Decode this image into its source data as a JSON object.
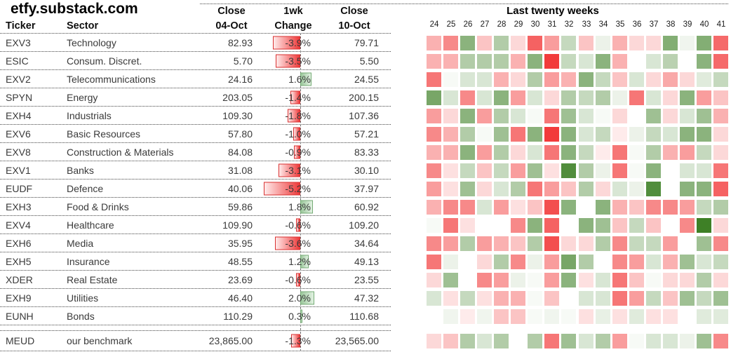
{
  "site_label": "etfy.substack.com",
  "chart_data": [
    {
      "type": "table",
      "title": "etfy.substack.com",
      "headers": {
        "ticker": "Ticker",
        "sector": "Sector",
        "close1_line1": "Close",
        "close1_line2": "04-Oct",
        "change_line1": "1wk",
        "change_line2": "Change",
        "close2_line1": "Close",
        "close2_line2": "10-Oct"
      },
      "rows": [
        {
          "ticker": "EXV3",
          "sector": "Technology",
          "close_04oct": "82.93",
          "change_1wk_pct": -3.9,
          "change_1wk_label": "-3.9%",
          "close_10oct": "79.71"
        },
        {
          "ticker": "ESIC",
          "sector": "Consum. Discret.",
          "close_04oct": "5.70",
          "change_1wk_pct": -3.5,
          "change_1wk_label": "-3.5%",
          "close_10oct": "5.50"
        },
        {
          "ticker": "EXV2",
          "sector": "Telecommunications",
          "close_04oct": "24.16",
          "change_1wk_pct": 1.6,
          "change_1wk_label": "1.6%",
          "close_10oct": "24.55"
        },
        {
          "ticker": "SPYN",
          "sector": "Energy",
          "close_04oct": "203.05",
          "change_1wk_pct": -1.4,
          "change_1wk_label": "-1.4%",
          "close_10oct": "200.15"
        },
        {
          "ticker": "EXH4",
          "sector": "Industrials",
          "close_04oct": "109.30",
          "change_1wk_pct": -1.8,
          "change_1wk_label": "-1.8%",
          "close_10oct": "107.36"
        },
        {
          "ticker": "EXV6",
          "sector": "Basic Resources",
          "close_04oct": "57.80",
          "change_1wk_pct": -1.0,
          "change_1wk_label": "-1.0%",
          "close_10oct": "57.21"
        },
        {
          "ticker": "EXV8",
          "sector": "Construction & Materials",
          "close_04oct": "84.08",
          "change_1wk_pct": -0.9,
          "change_1wk_label": "-0.9%",
          "close_10oct": "83.33"
        },
        {
          "ticker": "EXV1",
          "sector": "Banks",
          "close_04oct": "31.08",
          "change_1wk_pct": -3.1,
          "change_1wk_label": "-3.1%",
          "close_10oct": "30.10"
        },
        {
          "ticker": "EUDF",
          "sector": "Defence",
          "close_04oct": "40.06",
          "change_1wk_pct": -5.2,
          "change_1wk_label": "-5.2%",
          "close_10oct": "37.97"
        },
        {
          "ticker": "EXH3",
          "sector": "Food & Drinks",
          "close_04oct": "59.86",
          "change_1wk_pct": 1.8,
          "change_1wk_label": "1.8%",
          "close_10oct": "60.92"
        },
        {
          "ticker": "EXV4",
          "sector": "Healthcare",
          "close_04oct": "109.90",
          "change_1wk_pct": -0.6,
          "change_1wk_label": "-0.6%",
          "close_10oct": "109.20"
        },
        {
          "ticker": "EXH6",
          "sector": "Media",
          "close_04oct": "35.95",
          "change_1wk_pct": -3.6,
          "change_1wk_label": "-3.6%",
          "close_10oct": "34.64"
        },
        {
          "ticker": "EXH5",
          "sector": "Insurance",
          "close_04oct": "48.55",
          "change_1wk_pct": 1.2,
          "change_1wk_label": "1.2%",
          "close_10oct": "49.13"
        },
        {
          "ticker": "XDER",
          "sector": "Real Estate",
          "close_04oct": "23.69",
          "change_1wk_pct": -0.6,
          "change_1wk_label": "-0.6%",
          "close_10oct": "23.55"
        },
        {
          "ticker": "EXH9",
          "sector": "Utilities",
          "close_04oct": "46.40",
          "change_1wk_pct": 2.0,
          "change_1wk_label": "2.0%",
          "close_10oct": "47.32"
        },
        {
          "ticker": "EUNH",
          "sector": "Bonds",
          "close_04oct": "110.29",
          "change_1wk_pct": 0.3,
          "change_1wk_label": "0.3%",
          "close_10oct": "110.68"
        }
      ],
      "benchmark_row": {
        "ticker": "MEUD",
        "sector": "our benchmark",
        "close_04oct": "23,865.00",
        "change_1wk_pct": -1.3,
        "change_1wk_label": "-1.3%",
        "close_10oct": "23,565.00"
      },
      "bar_colors": {
        "negative_fill": "#ee3a3a",
        "negative_tip": "#ffeaea",
        "negative_border": "#d93030",
        "positive_fill": "#9cc89c",
        "positive_tip": "#e2f1e2",
        "positive_border": "#74ab74"
      }
    },
    {
      "type": "heatmap",
      "title": "Last twenty weeks",
      "week_labels": [
        "24",
        "25",
        "26",
        "27",
        "28",
        "29",
        "30",
        "31",
        "32",
        "33",
        "34",
        "35",
        "36",
        "37",
        "38",
        "39",
        "40",
        "41"
      ],
      "row_tickers": [
        "EXV3",
        "ESIC",
        "EXV2",
        "SPYN",
        "EXH4",
        "EXV6",
        "EXV8",
        "EXV1",
        "EUDF",
        "EXH3",
        "EXV4",
        "EXH6",
        "EXH5",
        "XDER",
        "EXH9",
        "EUNH",
        "MEUD"
      ],
      "values": [
        [
          -2,
          -3,
          3,
          -1.5,
          2,
          -1,
          -4,
          -2.5,
          1.5,
          -1.5,
          0.5,
          -2,
          -1,
          -1,
          3.2,
          0.4,
          3.2,
          -3.8
        ],
        [
          -2,
          -2,
          2,
          2,
          2,
          -2,
          3,
          -5,
          1.5,
          1,
          3,
          -2,
          0,
          1,
          1.8,
          0,
          3,
          -3.8
        ],
        [
          -3.5,
          0.2,
          1,
          1,
          -2,
          -1,
          2,
          -2.5,
          -2,
          3,
          1.5,
          -1.5,
          1,
          -1,
          -2.2,
          -1,
          0.8,
          1.5
        ],
        [
          3.5,
          1,
          -3,
          1,
          3,
          -2.5,
          1,
          -1,
          2,
          1.5,
          2,
          0.5,
          -3.5,
          1,
          -1,
          3,
          -2.5,
          -1.5
        ],
        [
          -2.5,
          -1,
          3,
          -2.5,
          2,
          1,
          0.2,
          -3.5,
          2.5,
          1,
          0.2,
          -1,
          0,
          2.5,
          -1,
          1,
          2.5,
          -2
        ],
        [
          -3,
          -2,
          2,
          0.2,
          2.5,
          -3.5,
          3,
          -5,
          3,
          1,
          1.5,
          -0.5,
          0.5,
          1.5,
          1,
          3,
          3,
          -1
        ],
        [
          -2,
          -2,
          3,
          -2.5,
          2,
          -1,
          1,
          -3.5,
          3,
          1.5,
          -0.5,
          -3.5,
          0.2,
          2,
          -2,
          -2.5,
          1.5,
          -1
        ],
        [
          -3,
          -0.8,
          1.5,
          -1.5,
          1.5,
          -2.5,
          2.5,
          -0.8,
          4.5,
          2,
          0.5,
          -3.5,
          0.2,
          3,
          0,
          1,
          1,
          -3.5
        ],
        [
          -2.5,
          -0.8,
          2.5,
          -1,
          1,
          2,
          -3.5,
          -2.5,
          -1.5,
          2,
          -1,
          1,
          0.5,
          4.5,
          0,
          3,
          3,
          -4
        ],
        [
          -2,
          -3,
          -3,
          1,
          -2.5,
          -0.8,
          -1.5,
          -4.5,
          3,
          0,
          3,
          -2,
          -1.5,
          -3,
          -3,
          -2.5,
          1.5,
          2
        ],
        [
          0.2,
          -3.5,
          -0.8,
          0,
          0,
          -3,
          3,
          -4,
          0,
          3,
          2.5,
          -1.5,
          1.5,
          -1.5,
          0,
          -3,
          5,
          -1
        ],
        [
          -3,
          -2.5,
          2,
          -2.5,
          -2,
          -1.5,
          2,
          -4.5,
          -1,
          -1,
          2,
          -3,
          1.5,
          1.5,
          -2.5,
          0,
          2.5,
          -3
        ],
        [
          -3.5,
          0.5,
          0,
          -1,
          2,
          -3,
          0.5,
          -2.5,
          3.5,
          2,
          0,
          -3,
          -2.5,
          1,
          -2,
          2.5,
          1,
          1.5
        ],
        [
          -1,
          2.5,
          0,
          -3,
          -2.5,
          0.5,
          0.2,
          -2.5,
          3,
          -0.8,
          1,
          -3.5,
          -1.5,
          0.2,
          -1,
          -1,
          2,
          -1
        ],
        [
          1,
          -0.8,
          1.5,
          -0.8,
          -2,
          -2,
          0.2,
          -1.5,
          0,
          1,
          1,
          -3.5,
          -2.5,
          1.5,
          -1.5,
          2.5,
          1.5,
          2.5
        ],
        [
          0,
          0.4,
          -0.5,
          0.4,
          -1.5,
          -1.5,
          0.2,
          0.4,
          0.2,
          -0.8,
          0.6,
          -0.8,
          0.8,
          -0.8,
          -0.8,
          0,
          0.8,
          0.8
        ],
        [
          -1,
          -1.5,
          2,
          1,
          2,
          0,
          2,
          -3.5,
          2.5,
          1,
          2,
          -2.5,
          0.2,
          1,
          1,
          0.5,
          2.5,
          -3
        ]
      ],
      "scale": {
        "min": -5,
        "max": 5,
        "negative_color": "#f23b3b",
        "positive_color": "#3e8026",
        "zero_color": "#ffffff"
      }
    }
  ]
}
